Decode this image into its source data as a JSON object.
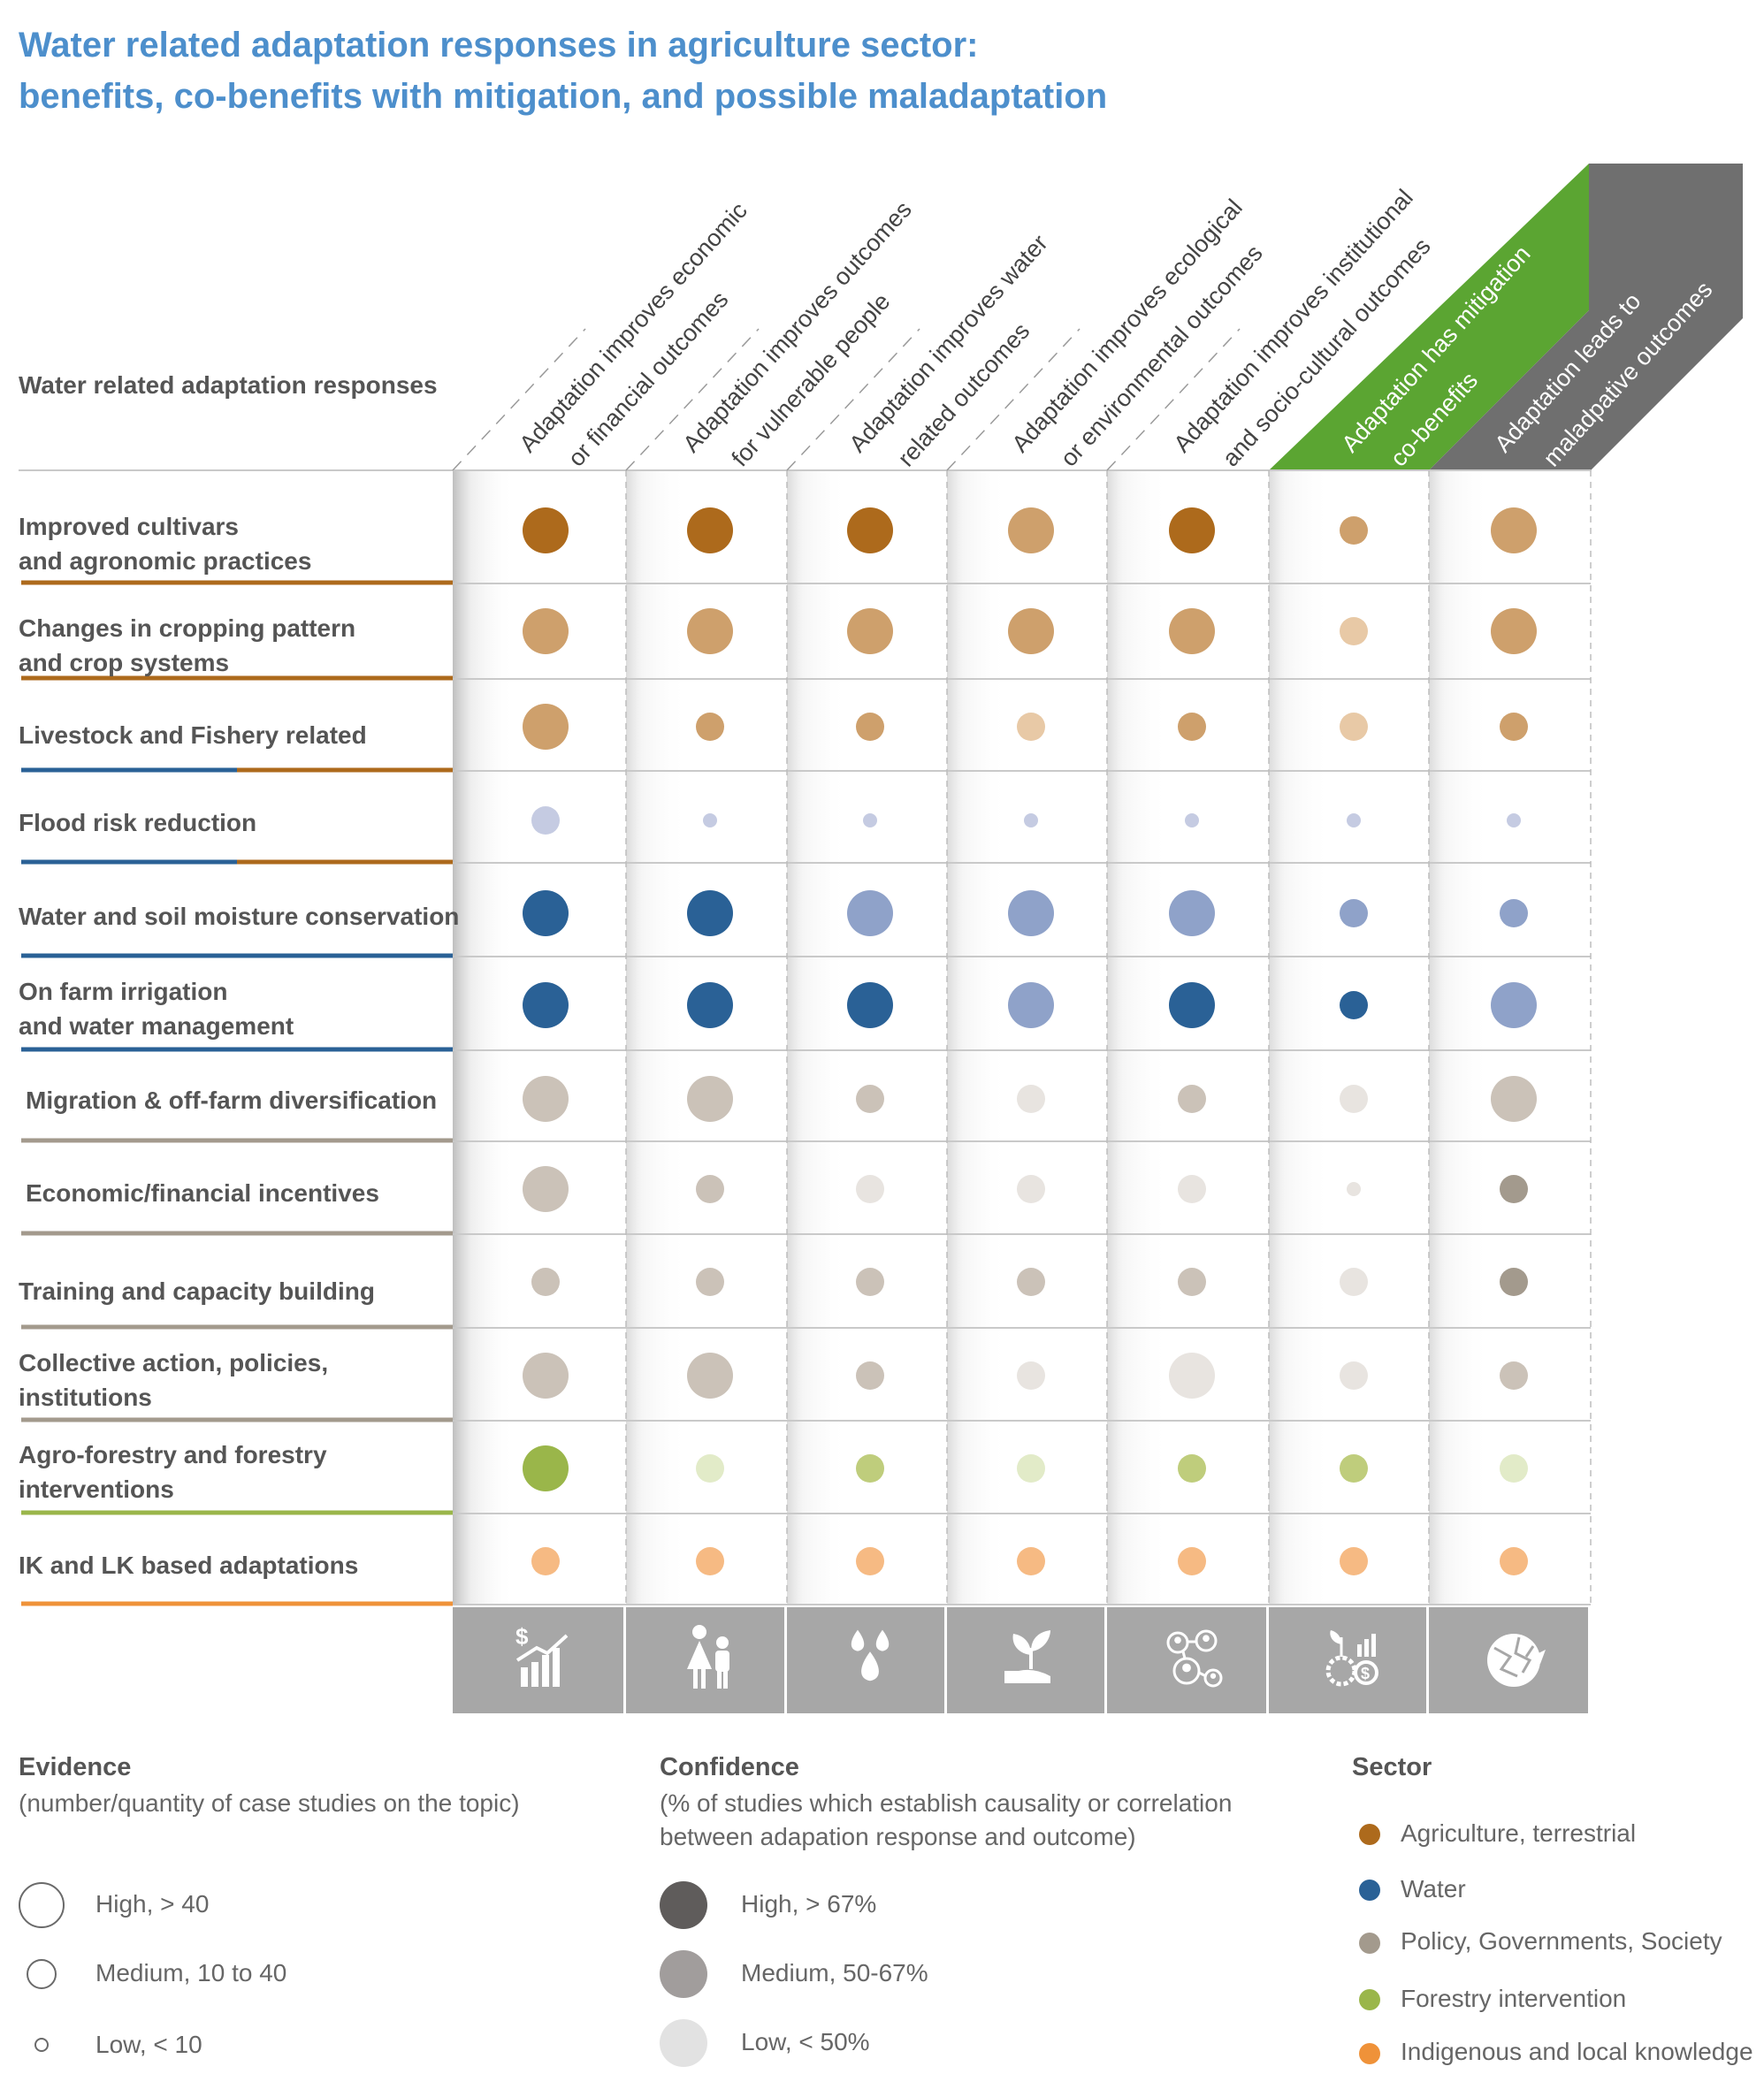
{
  "title_line1": "Water related adaptation responses in agriculture sector:",
  "title_line2": "benefits, co-benefits with mitigation, and possible maladaptation",
  "row_header": "Water related adaptation responses",
  "colors": {
    "agriculture": [
      "#e8c9a6",
      "#cea06c",
      "#ad6a1c"
    ],
    "water": [
      "#c5cbe2",
      "#8fa2c9",
      "#2a6196"
    ],
    "policy": [
      "#e8e4e0",
      "#cbc2b8",
      "#a39a8d"
    ],
    "forestry": [
      "#e2ebc8",
      "#bfcd7c",
      "#9ab64a"
    ],
    "indigenous": [
      "#fbd9b8",
      "#f6ba83",
      "#ef9239"
    ],
    "mitigation_header": "#5ba532",
    "maladaptation_header": "#6f6f6f",
    "icon_band": "#a7a7a7"
  },
  "chart_data": {
    "type": "bubble-matrix",
    "columns": [
      {
        "label_lines": [
          "Adaptation improves economic",
          "or financial outcomes"
        ],
        "icon": "economic-growth-icon"
      },
      {
        "label_lines": [
          "Adaptation improves outcomes",
          "for vulnerable people"
        ],
        "icon": "vulnerable-people-icon"
      },
      {
        "label_lines": [
          "Adaptation improves water",
          "related outcomes"
        ],
        "icon": "water-drops-icon"
      },
      {
        "label_lines": [
          "Adaptation improves ecological",
          "or environmental outcomes"
        ],
        "icon": "plant-in-hand-icon"
      },
      {
        "label_lines": [
          "Adaptation improves institutional",
          "and socio-cultural outcomes"
        ],
        "icon": "people-network-icon"
      },
      {
        "label_lines": [
          "Adaptation has mitigation",
          "co-benefits"
        ],
        "icon": "mitigation-gears-icon",
        "highlight": "mitigation"
      },
      {
        "label_lines": [
          "Adaptation  leads to",
          "maladpative outcomes"
        ],
        "icon": "cracked-globe-icon",
        "highlight": "maladaptation"
      }
    ],
    "rows": [
      {
        "label_lines": [
          "Improved cultivars",
          "and agronomic practices"
        ],
        "sector": "agriculture",
        "cells": [
          [
            "H",
            "H"
          ],
          [
            "H",
            "H"
          ],
          [
            "H",
            "H"
          ],
          [
            "H",
            "M"
          ],
          [
            "H",
            "H"
          ],
          [
            "M",
            "M"
          ],
          [
            "H",
            "M"
          ]
        ]
      },
      {
        "label_lines": [
          "Changes in cropping pattern",
          "and crop systems"
        ],
        "sector": "agriculture",
        "cells": [
          [
            "H",
            "M"
          ],
          [
            "H",
            "M"
          ],
          [
            "H",
            "M"
          ],
          [
            "H",
            "M"
          ],
          [
            "H",
            "M"
          ],
          [
            "M",
            "L"
          ],
          [
            "H",
            "M"
          ]
        ]
      },
      {
        "label_lines": [
          "Livestock and Fishery related"
        ],
        "sector": "agriculture",
        "cells": [
          [
            "H",
            "M"
          ],
          [
            "M",
            "M"
          ],
          [
            "M",
            "M"
          ],
          [
            "M",
            "L"
          ],
          [
            "M",
            "M"
          ],
          [
            "M",
            "L"
          ],
          [
            "M",
            "M"
          ]
        ]
      },
      {
        "label_lines": [
          "Flood risk reduction"
        ],
        "sector": "water",
        "cells": [
          [
            "M",
            "L"
          ],
          [
            "L",
            "L"
          ],
          [
            "L",
            "L"
          ],
          [
            "L",
            "L"
          ],
          [
            "L",
            "L"
          ],
          [
            "L",
            "L"
          ],
          [
            "L",
            "L"
          ]
        ]
      },
      {
        "label_lines": [
          "Water and soil moisture conservation"
        ],
        "sector": "water",
        "cells": [
          [
            "H",
            "H"
          ],
          [
            "H",
            "H"
          ],
          [
            "H",
            "M"
          ],
          [
            "H",
            "M"
          ],
          [
            "H",
            "M"
          ],
          [
            "M",
            "M"
          ],
          [
            "M",
            "M"
          ]
        ]
      },
      {
        "label_lines": [
          "On farm irrigation",
          "and water management"
        ],
        "sector": "water",
        "cells": [
          [
            "H",
            "H"
          ],
          [
            "H",
            "H"
          ],
          [
            "H",
            "H"
          ],
          [
            "H",
            "M"
          ],
          [
            "H",
            "H"
          ],
          [
            "M",
            "H"
          ],
          [
            "H",
            "M"
          ]
        ]
      },
      {
        "label_lines": [
          "Migration & off-farm diversification"
        ],
        "sector": "policy",
        "cells": [
          [
            "H",
            "M"
          ],
          [
            "H",
            "M"
          ],
          [
            "M",
            "M"
          ],
          [
            "M",
            "L"
          ],
          [
            "M",
            "M"
          ],
          [
            "M",
            "L"
          ],
          [
            "H",
            "M"
          ]
        ]
      },
      {
        "label_lines": [
          "Economic/financial incentives"
        ],
        "sector": "policy",
        "cells": [
          [
            "H",
            "M"
          ],
          [
            "M",
            "M"
          ],
          [
            "M",
            "L"
          ],
          [
            "M",
            "L"
          ],
          [
            "M",
            "L"
          ],
          [
            "L",
            "L"
          ],
          [
            "M",
            "H"
          ]
        ]
      },
      {
        "label_lines": [
          "Training and capacity building"
        ],
        "sector": "policy",
        "cells": [
          [
            "M",
            "M"
          ],
          [
            "M",
            "M"
          ],
          [
            "M",
            "M"
          ],
          [
            "M",
            "M"
          ],
          [
            "M",
            "M"
          ],
          [
            "M",
            "L"
          ],
          [
            "M",
            "H"
          ]
        ]
      },
      {
        "label_lines": [
          "Collective action, policies,",
          "institutions"
        ],
        "sector": "policy",
        "cells": [
          [
            "H",
            "M"
          ],
          [
            "H",
            "M"
          ],
          [
            "M",
            "M"
          ],
          [
            "M",
            "L"
          ],
          [
            "H",
            "L"
          ],
          [
            "M",
            "L"
          ],
          [
            "M",
            "M"
          ]
        ]
      },
      {
        "label_lines": [
          "Agro-forestry and forestry",
          "interventions"
        ],
        "sector": "forestry",
        "cells": [
          [
            "H",
            "H"
          ],
          [
            "M",
            "L"
          ],
          [
            "M",
            "M"
          ],
          [
            "M",
            "L"
          ],
          [
            "M",
            "M"
          ],
          [
            "M",
            "M"
          ],
          [
            "M",
            "L"
          ]
        ]
      },
      {
        "label_lines": [
          "IK and LK based adaptations"
        ],
        "sector": "indigenous",
        "cells": [
          [
            "M",
            "M"
          ],
          [
            "M",
            "M"
          ],
          [
            "M",
            "M"
          ],
          [
            "M",
            "M"
          ],
          [
            "M",
            "M"
          ],
          [
            "M",
            "M"
          ],
          [
            "M",
            "M"
          ]
        ]
      }
    ],
    "row_sector_lines": [
      [
        "agriculture"
      ],
      [
        "agriculture"
      ],
      [
        "water",
        "agriculture"
      ],
      [
        "water",
        "agriculture"
      ],
      [
        "water"
      ],
      [
        "water"
      ],
      [
        "policy"
      ],
      [
        "policy"
      ],
      [
        "policy"
      ],
      [
        "policy"
      ],
      [
        "forestry"
      ],
      [
        "indigenous"
      ]
    ]
  },
  "legend": {
    "evidence_title": "Evidence",
    "evidence_sub": "(number/quantity of case studies on the topic)",
    "evidence_items": [
      "High, > 40",
      "Medium, 10 to 40",
      "Low, < 10"
    ],
    "confidence_title": "Confidence",
    "confidence_sub1": "(% of studies which establish causality or correlation",
    "confidence_sub2": "between adapation response and outcome)",
    "confidence_items": [
      "High, > 67%",
      "Medium, 50-67%",
      "Low, < 50%"
    ],
    "confidence_colors": [
      "#5f5c5b",
      "#a19d9c",
      "#e2e2e2"
    ],
    "sector_title": "Sector",
    "sector_items": [
      "Agriculture, terrestrial",
      "Water",
      "Policy, Governments, Society",
      "Forestry intervention",
      "Indigenous and local knowledge"
    ],
    "sector_colors": [
      "#ad6a1c",
      "#2a6196",
      "#a39a8d",
      "#9ab64a",
      "#ef9239"
    ]
  }
}
